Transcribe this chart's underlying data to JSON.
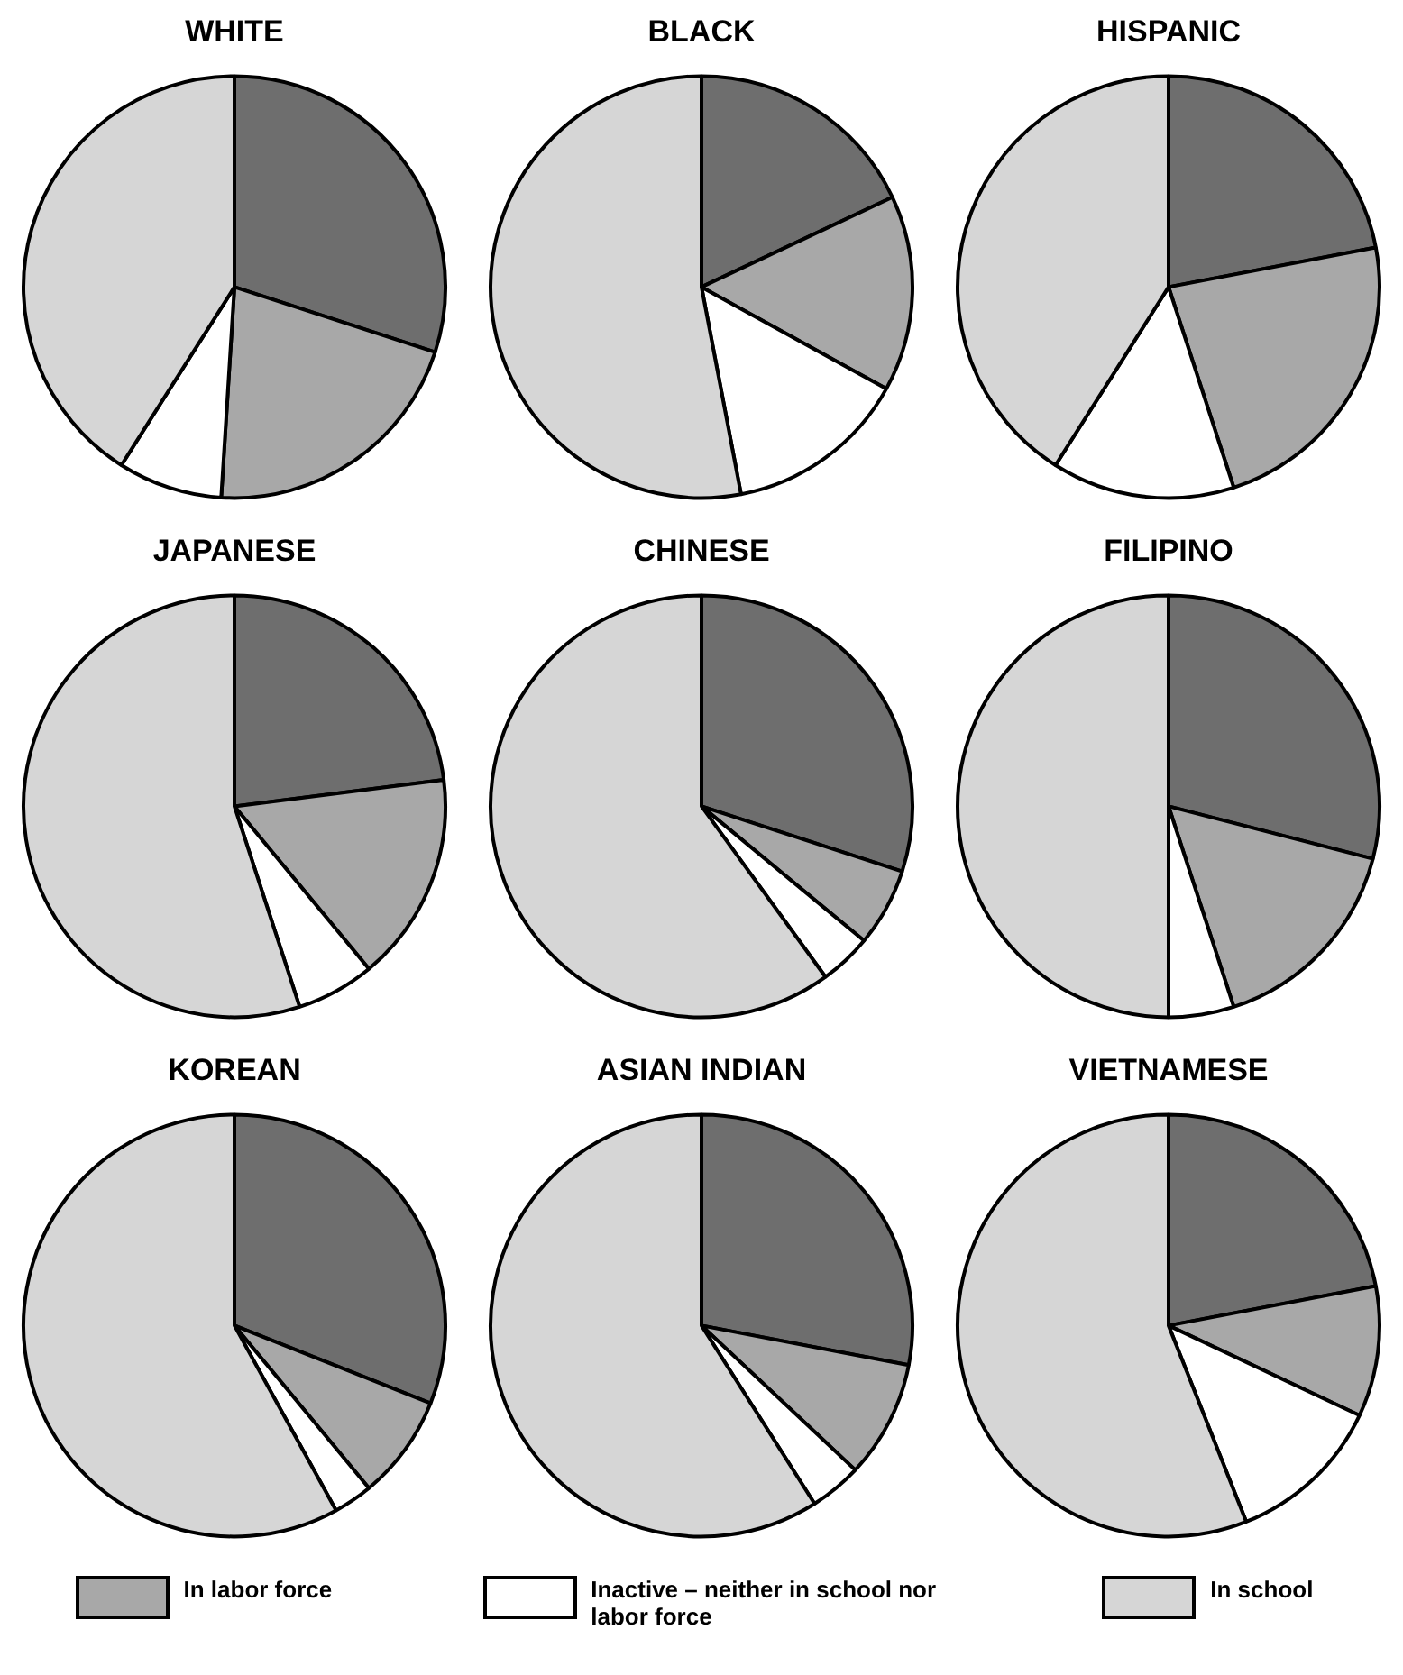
{
  "chart_data": [
    {
      "type": "pie",
      "title": "WHITE",
      "categories": [
        null,
        null,
        null,
        null
      ],
      "values": [
        30,
        21,
        8,
        41
      ],
      "colors": [
        "#6e6e6e",
        "#a8a8a8",
        "#ffffff",
        "#d6d6d6"
      ],
      "legend": false
    },
    {
      "type": "pie",
      "title": "BLACK",
      "categories": [
        null,
        null,
        null,
        null
      ],
      "values": [
        18,
        15,
        14,
        53
      ],
      "colors": [
        "#6e6e6e",
        "#a8a8a8",
        "#ffffff",
        "#d6d6d6"
      ],
      "legend": false
    },
    {
      "type": "pie",
      "title": "HISPANIC",
      "categories": [
        null,
        null,
        null,
        null
      ],
      "values": [
        22,
        23,
        14,
        41
      ],
      "colors": [
        "#6e6e6e",
        "#a8a8a8",
        "#ffffff",
        "#d6d6d6"
      ],
      "legend": false
    },
    {
      "type": "pie",
      "title": "JAPANESE",
      "categories": [
        null,
        null,
        null,
        null
      ],
      "values": [
        23,
        16,
        6,
        55
      ],
      "colors": [
        "#6e6e6e",
        "#a8a8a8",
        "#ffffff",
        "#d6d6d6"
      ],
      "legend": false
    },
    {
      "type": "pie",
      "title": "CHINESE",
      "categories": [
        null,
        null,
        null,
        null
      ],
      "values": [
        30,
        6,
        4,
        60
      ],
      "colors": [
        "#6e6e6e",
        "#a8a8a8",
        "#ffffff",
        "#d6d6d6"
      ],
      "legend": false
    },
    {
      "type": "pie",
      "title": "FILIPINO",
      "categories": [
        null,
        null,
        null,
        null
      ],
      "values": [
        29,
        16,
        5,
        50
      ],
      "colors": [
        "#6e6e6e",
        "#a8a8a8",
        "#ffffff",
        "#d6d6d6"
      ],
      "legend": false
    },
    {
      "type": "pie",
      "title": "KOREAN",
      "categories": [
        null,
        null,
        null,
        null
      ],
      "values": [
        31,
        8,
        3,
        58
      ],
      "colors": [
        "#6e6e6e",
        "#a8a8a8",
        "#ffffff",
        "#d6d6d6"
      ],
      "legend": false
    },
    {
      "type": "pie",
      "title": "ASIAN INDIAN",
      "categories": [
        null,
        null,
        null,
        null
      ],
      "values": [
        28,
        9,
        4,
        59
      ],
      "colors": [
        "#6e6e6e",
        "#a8a8a8",
        "#ffffff",
        "#d6d6d6"
      ],
      "legend": false
    },
    {
      "type": "pie",
      "title": "VIETNAMESE",
      "categories": [
        null,
        "In labor force",
        "Inactive – neither in school nor labor force",
        "In school"
      ],
      "values": [
        22,
        10,
        12,
        56
      ],
      "colors": [
        "#6e6e6e",
        "#a8a8a8",
        "#ffffff",
        "#d6d6d6"
      ],
      "legend": "bottom"
    }
  ]
}
